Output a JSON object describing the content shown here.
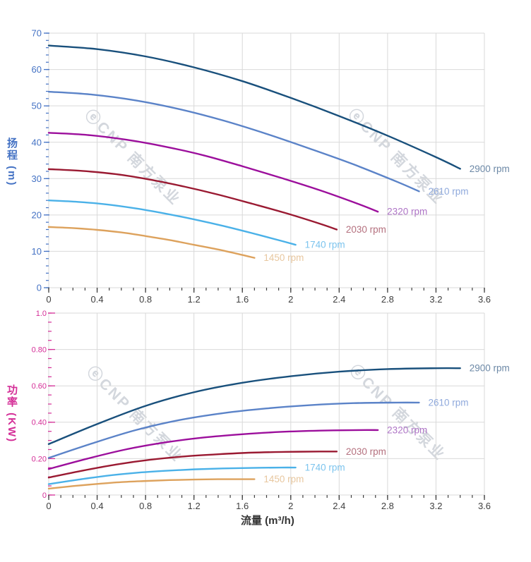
{
  "watermark": {
    "text": "ⓔCNP 南方泵业",
    "color": "#d3d7dd"
  },
  "x_axis": {
    "title": "流量 (m³/h)",
    "tick_color": "#404040"
  },
  "chart_data": [
    {
      "type": "line",
      "ylabel": "扬程 (m)",
      "ylabel_main": "扬程",
      "ylabel_unit": "(m)",
      "axis_color": "#4472c4",
      "xlabel": "流量 (m³/h)",
      "xlim": [
        0,
        3.6
      ],
      "ylim": [
        0,
        70
      ],
      "xticks": {
        "values": [
          0,
          0.4,
          0.8,
          1.2,
          1.6,
          2,
          2.4,
          2.8,
          3.2,
          3.6
        ],
        "labels": [
          "0",
          "0.4",
          "0.8",
          "1.2",
          "1.6",
          "2",
          "2.4",
          "2.8",
          "3.2",
          "3.6"
        ],
        "minor_step": 0.1
      },
      "yticks": {
        "values": [
          0,
          10,
          20,
          30,
          40,
          50,
          60,
          70
        ],
        "labels": [
          "0",
          "10",
          "20",
          "30",
          "40",
          "50",
          "60",
          "70"
        ],
        "minor_step": 2
      },
      "series": [
        {
          "name": "2900 rpm",
          "color": "#19507c",
          "label_color": "#6c88a6",
          "x": [
            0,
            0.4,
            0.8,
            1.2,
            1.6,
            2.0,
            2.4,
            2.8,
            3.2,
            3.4
          ],
          "y": [
            66.6,
            65.6,
            63.6,
            60.6,
            56.8,
            52.2,
            47.2,
            41.8,
            35.9,
            32.7
          ]
        },
        {
          "name": "2610 rpm",
          "color": "#5b83c8",
          "label_color": "#8fa9dc",
          "x": [
            0,
            0.36,
            0.72,
            1.08,
            1.44,
            1.8,
            2.16,
            2.52,
            2.88,
            3.06
          ],
          "y": [
            53.9,
            53.1,
            51.5,
            49.1,
            46.0,
            42.3,
            38.2,
            33.9,
            29.1,
            26.5
          ]
        },
        {
          "name": "2320 rpm",
          "color": "#9c0f9c",
          "label_color": "#ae74c6",
          "x": [
            0,
            0.32,
            0.64,
            0.96,
            1.28,
            1.6,
            1.92,
            2.24,
            2.56,
            2.72
          ],
          "y": [
            42.6,
            42.0,
            40.7,
            38.8,
            36.4,
            33.4,
            30.2,
            26.8,
            23.0,
            20.9
          ]
        },
        {
          "name": "2030 rpm",
          "color": "#9a1a32",
          "label_color": "#b4707e",
          "x": [
            0,
            0.28,
            0.56,
            0.84,
            1.12,
            1.4,
            1.68,
            1.96,
            2.24,
            2.38
          ],
          "y": [
            32.6,
            32.1,
            31.2,
            29.7,
            27.8,
            25.6,
            23.1,
            20.5,
            17.6,
            16.0
          ]
        },
        {
          "name": "1740 rpm",
          "color": "#4ab1e8",
          "label_color": "#7cc4ee",
          "x": [
            0,
            0.24,
            0.48,
            0.72,
            0.96,
            1.2,
            1.44,
            1.68,
            1.92,
            2.04
          ],
          "y": [
            24.0,
            23.6,
            22.9,
            21.8,
            20.4,
            18.8,
            17.0,
            15.0,
            12.9,
            11.8
          ]
        },
        {
          "name": "1450 rpm",
          "color": "#dda25d",
          "label_color": "#e8c79f",
          "x": [
            0,
            0.2,
            0.4,
            0.6,
            0.8,
            1.0,
            1.2,
            1.4,
            1.6,
            1.7
          ],
          "y": [
            16.7,
            16.4,
            15.9,
            15.2,
            14.2,
            13.1,
            11.8,
            10.5,
            9.0,
            8.2
          ]
        }
      ]
    },
    {
      "type": "line",
      "ylabel": "功率 (KW)",
      "ylabel_main": "功率",
      "ylabel_unit": "(KW)",
      "axis_color": "#d42e97",
      "xlabel": "流量 (m³/h)",
      "xlim": [
        0,
        3.6
      ],
      "ylim": [
        0,
        1.0
      ],
      "xticks": {
        "values": [
          0,
          0.4,
          0.8,
          1.2,
          1.6,
          2,
          2.4,
          2.8,
          3.2,
          3.6
        ],
        "labels": [
          "0",
          "0.4",
          "0.8",
          "1.2",
          "1.6",
          "2",
          "2.4",
          "2.8",
          "3.2",
          "3.6"
        ],
        "minor_step": 0.1
      },
      "yticks": {
        "values": [
          0,
          0.2,
          0.4,
          0.6,
          0.8,
          1.0
        ],
        "labels": [
          "0",
          "0.20",
          "0.40",
          "0.60",
          "0.80",
          "1.0"
        ],
        "minor_step": 0.05
      },
      "series": [
        {
          "name": "2900 rpm",
          "color": "#19507c",
          "label_color": "#6c88a6",
          "x": [
            0,
            0.4,
            0.8,
            1.2,
            1.6,
            2.0,
            2.4,
            2.8,
            3.2,
            3.4
          ],
          "y": [
            0.28,
            0.39,
            0.49,
            0.565,
            0.617,
            0.653,
            0.678,
            0.692,
            0.697,
            0.697
          ]
        },
        {
          "name": "2610 rpm",
          "color": "#5b83c8",
          "label_color": "#8fa9dc",
          "x": [
            0,
            0.36,
            0.72,
            1.08,
            1.44,
            1.8,
            2.16,
            2.52,
            2.88,
            3.06
          ],
          "y": [
            0.204,
            0.284,
            0.357,
            0.412,
            0.45,
            0.476,
            0.494,
            0.505,
            0.508,
            0.508
          ]
        },
        {
          "name": "2320 rpm",
          "color": "#9c0f9c",
          "label_color": "#ae74c6",
          "x": [
            0,
            0.32,
            0.64,
            0.96,
            1.28,
            1.6,
            1.92,
            2.24,
            2.56,
            2.72
          ],
          "y": [
            0.143,
            0.2,
            0.251,
            0.289,
            0.316,
            0.334,
            0.347,
            0.354,
            0.357,
            0.357
          ]
        },
        {
          "name": "2030 rpm",
          "color": "#9a1a32",
          "label_color": "#b4707e",
          "x": [
            0,
            0.28,
            0.56,
            0.84,
            1.12,
            1.4,
            1.68,
            1.96,
            2.24,
            2.38
          ],
          "y": [
            0.096,
            0.134,
            0.168,
            0.194,
            0.212,
            0.224,
            0.233,
            0.237,
            0.239,
            0.239
          ]
        },
        {
          "name": "1740 rpm",
          "color": "#4ab1e8",
          "label_color": "#7cc4ee",
          "x": [
            0,
            0.24,
            0.48,
            0.72,
            0.96,
            1.2,
            1.44,
            1.68,
            1.92,
            2.04
          ],
          "y": [
            0.06,
            0.084,
            0.106,
            0.122,
            0.133,
            0.141,
            0.146,
            0.149,
            0.151,
            0.151
          ]
        },
        {
          "name": "1450 rpm",
          "color": "#dda25d",
          "label_color": "#e8c79f",
          "x": [
            0,
            0.2,
            0.4,
            0.6,
            0.8,
            1.0,
            1.2,
            1.4,
            1.6,
            1.7
          ],
          "y": [
            0.035,
            0.049,
            0.061,
            0.071,
            0.077,
            0.082,
            0.085,
            0.087,
            0.087,
            0.087
          ]
        }
      ]
    }
  ]
}
